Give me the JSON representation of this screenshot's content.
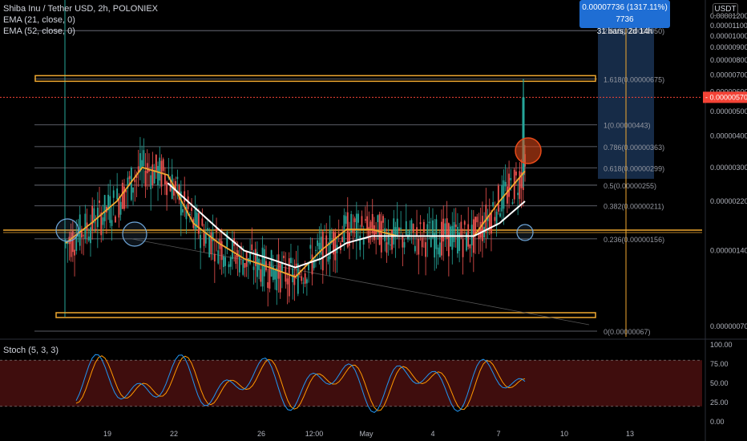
{
  "header": {
    "title": "Shiba Inu / Tether USD, 2h, POLONIEX",
    "ema1": "EMA (21, close, 0)",
    "ema2": "EMA (52, close, 0)",
    "stoch": "Stoch (5, 3, 3)",
    "currency": "USDT"
  },
  "measure": {
    "line1": "0.00007736 (1317.11%) 7736",
    "line2": "31 bars, 2d 14h"
  },
  "colors": {
    "background": "#000000",
    "candle_up": "#26a69a",
    "candle_down": "#ef5350",
    "ema21": "#f0a830",
    "ema52": "#ffffff",
    "fib_line": "#787b86",
    "orange_zone": "#f0a830",
    "circle_blue": "#6fa8dc",
    "circle_red": "#e64a19",
    "stoch_k": "#2196f3",
    "stoch_d": "#ff9800",
    "stoch_band": "#4a0f0f",
    "current_price": "#f44336"
  },
  "chart_data": [
    {
      "type": "line",
      "title": "Shiba Inu / Tether USD, 2h, POLONIEX",
      "y_scale": "log",
      "ylim": [
        6e-07,
        1.25e-05
      ],
      "x_ticks": [
        "19",
        "22",
        "26",
        "12:00",
        "May",
        "4",
        "7",
        "10",
        "13"
      ],
      "y_ticks": [
        "0.00001200",
        "0.00001100",
        "0.00001000",
        "0.00000900",
        "0.00000800",
        "0.00000700",
        "0.00000600",
        "0.00000500",
        "0.00000400",
        "0.00000300",
        "0.00000220",
        "0.00000140",
        "0.00000070"
      ],
      "y_ticks_values": [
        1.2e-05,
        1.1e-05,
        1e-05,
        9e-06,
        8e-06,
        7e-06,
        6e-06,
        5e-06,
        4e-06,
        3e-06,
        2.2e-06,
        1.4e-06,
        7e-07
      ],
      "current_price_label": "0.00000570",
      "current_price": 5.7e-06,
      "fib_levels": [
        {
          "label": "2.618(0.00001050)",
          "value": 1.05e-05
        },
        {
          "label": "1.618(0.00000675)",
          "value": 6.75e-06
        },
        {
          "label": "1(0.00000443)",
          "value": 4.43e-06
        },
        {
          "label": "0.786(0.00000363)",
          "value": 3.63e-06
        },
        {
          "label": "0.618(0.00000299)",
          "value": 2.99e-06
        },
        {
          "label": "0.5(0.00000255)",
          "value": 2.55e-06
        },
        {
          "label": "0.382(0.00000211)",
          "value": 2.11e-06
        },
        {
          "label": "0.236(0.00000156)",
          "value": 1.56e-06
        },
        {
          "label": "0(0.00000067)",
          "value": 6.7e-07
        }
      ],
      "series": [
        {
          "name": "EMA (21, close, 0)",
          "x": [
            0,
            5,
            10,
            15,
            20,
            25,
            30,
            35,
            40,
            45,
            50,
            55,
            60,
            65,
            70,
            75,
            80,
            85,
            90
          ],
          "values": [
            1.5e-06,
            1.8e-06,
            2.2e-06,
            3e-06,
            2.8e-06,
            1.8e-06,
            1.5e-06,
            1.3e-06,
            1.2e-06,
            1.1e-06,
            1.4e-06,
            1.7e-06,
            1.7e-06,
            1.6e-06,
            1.6e-06,
            1.6e-06,
            1.6e-06,
            2.2e-06,
            2.9e-06
          ]
        },
        {
          "name": "EMA (52, close, 0)",
          "x": [
            20,
            25,
            30,
            35,
            40,
            45,
            50,
            55,
            60,
            65,
            70,
            75,
            80,
            85,
            90
          ],
          "values": [
            2.6e-06,
            2.1e-06,
            1.7e-06,
            1.4e-06,
            1.3e-06,
            1.2e-06,
            1.3e-06,
            1.5e-06,
            1.6e-06,
            1.6e-06,
            1.6e-06,
            1.6e-06,
            1.6e-06,
            1.8e-06,
            2.2e-06
          ]
        }
      ]
    },
    {
      "type": "line",
      "title": "Stoch (5, 3, 3)",
      "ylim": [
        0,
        100
      ],
      "y_ticks": [
        "100.00",
        "75.00",
        "50.00",
        "25.00",
        "0.00"
      ],
      "y_ticks_values": [
        100,
        75,
        50,
        25,
        0
      ],
      "band": [
        20,
        80
      ]
    }
  ]
}
